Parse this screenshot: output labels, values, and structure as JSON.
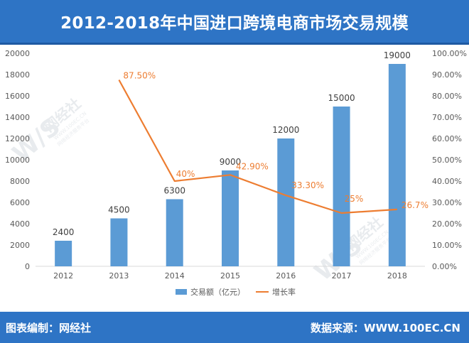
{
  "title": "2012-2018年中国进口跨境电商市场交易规模",
  "footer": {
    "left": "图表编制：网经社",
    "right": "数据来源：WWW.100EC.CN"
  },
  "watermark": {
    "brand": "网经社",
    "url": "WWW.100EC.CN",
    "sub": "网络经济服务平台"
  },
  "colors": {
    "bar": "#5b9bd5",
    "line": "#ed7d31",
    "header": "#2e74c5"
  },
  "chart_data": {
    "type": "bar",
    "categories": [
      "2012",
      "2013",
      "2014",
      "2015",
      "2016",
      "2017",
      "2018"
    ],
    "series": [
      {
        "name": "交易额（亿元）",
        "type": "bar",
        "axis": "left",
        "values": [
          2400,
          4500,
          6300,
          9000,
          12000,
          15000,
          19000
        ],
        "labels": [
          "2400",
          "4500",
          "6300",
          "9000",
          "12000",
          "15000",
          "19000"
        ]
      },
      {
        "name": "增长率",
        "type": "line",
        "axis": "right",
        "values": [
          null,
          87.5,
          40,
          42.9,
          33.3,
          25,
          26.7
        ],
        "labels": [
          "",
          "87.50%",
          "40%",
          "42.90%",
          "33.30%",
          "25%",
          "26.7%"
        ]
      }
    ],
    "ylim_left": [
      0,
      20000
    ],
    "yticks_left": [
      "0",
      "2000",
      "4000",
      "6000",
      "8000",
      "10000",
      "12000",
      "14000",
      "16000",
      "18000",
      "20000"
    ],
    "ylim_right": [
      0,
      100
    ],
    "yticks_right": [
      "0.00%",
      "10.00%",
      "20.00%",
      "30.00%",
      "40.00%",
      "50.00%",
      "60.00%",
      "70.00%",
      "80.00%",
      "90.00%",
      "100.00%"
    ],
    "grid": false,
    "legend": "bottom"
  }
}
